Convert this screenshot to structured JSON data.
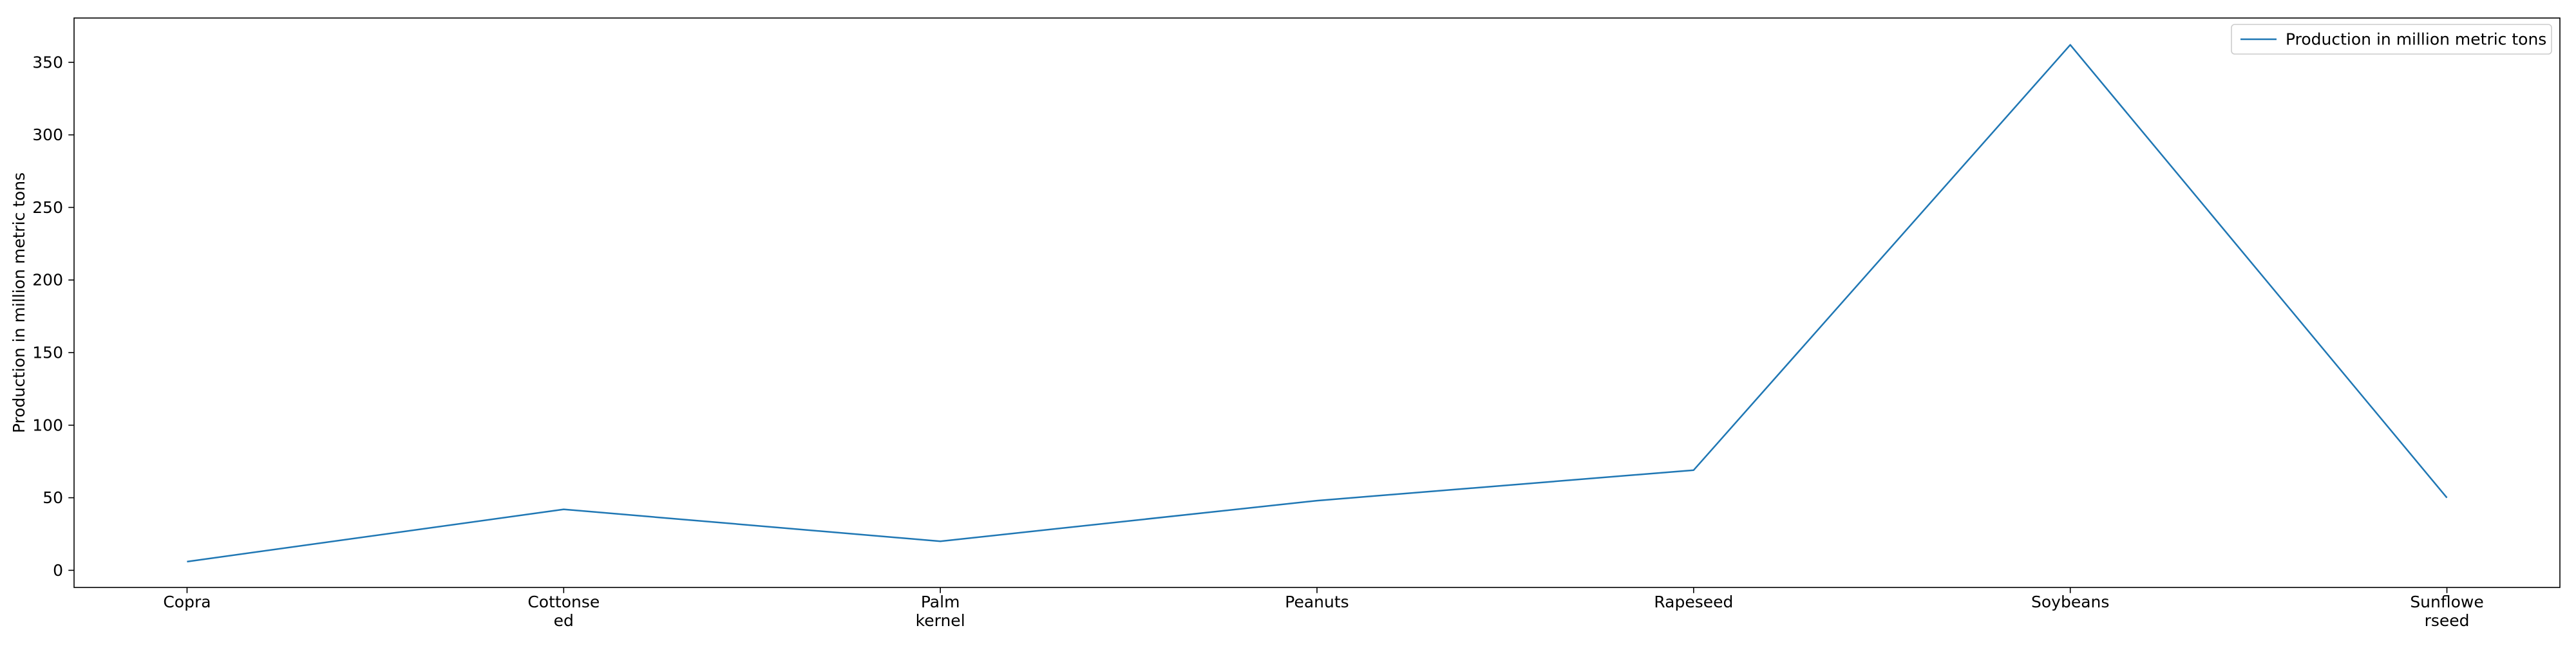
{
  "chart_data": {
    "type": "line",
    "categories": [
      "Copra",
      "Cottonseed",
      "Palm kernel",
      "Peanuts",
      "Rapeseed",
      "Soybeans",
      "Sunflowerseed"
    ],
    "category_tick_lines": [
      [
        "Copra"
      ],
      [
        "Cottonse",
        "ed"
      ],
      [
        "Palm",
        "kernel"
      ],
      [
        "Peanuts"
      ],
      [
        "Rapeseed"
      ],
      [
        "Soybeans"
      ],
      [
        "Sunflowe",
        "rseed"
      ]
    ],
    "series": [
      {
        "name": "Production in million metric tons",
        "values": [
          6,
          42,
          20,
          48,
          69,
          362,
          50
        ],
        "color": "#1f77b4"
      }
    ],
    "title": "",
    "xlabel": "",
    "ylabel": "Production in million metric tons",
    "ylim": [
      -11.8,
      380.5
    ],
    "yticks": [
      0,
      50,
      100,
      150,
      200,
      250,
      300,
      350
    ],
    "grid": false,
    "legend_position": "top-right"
  }
}
